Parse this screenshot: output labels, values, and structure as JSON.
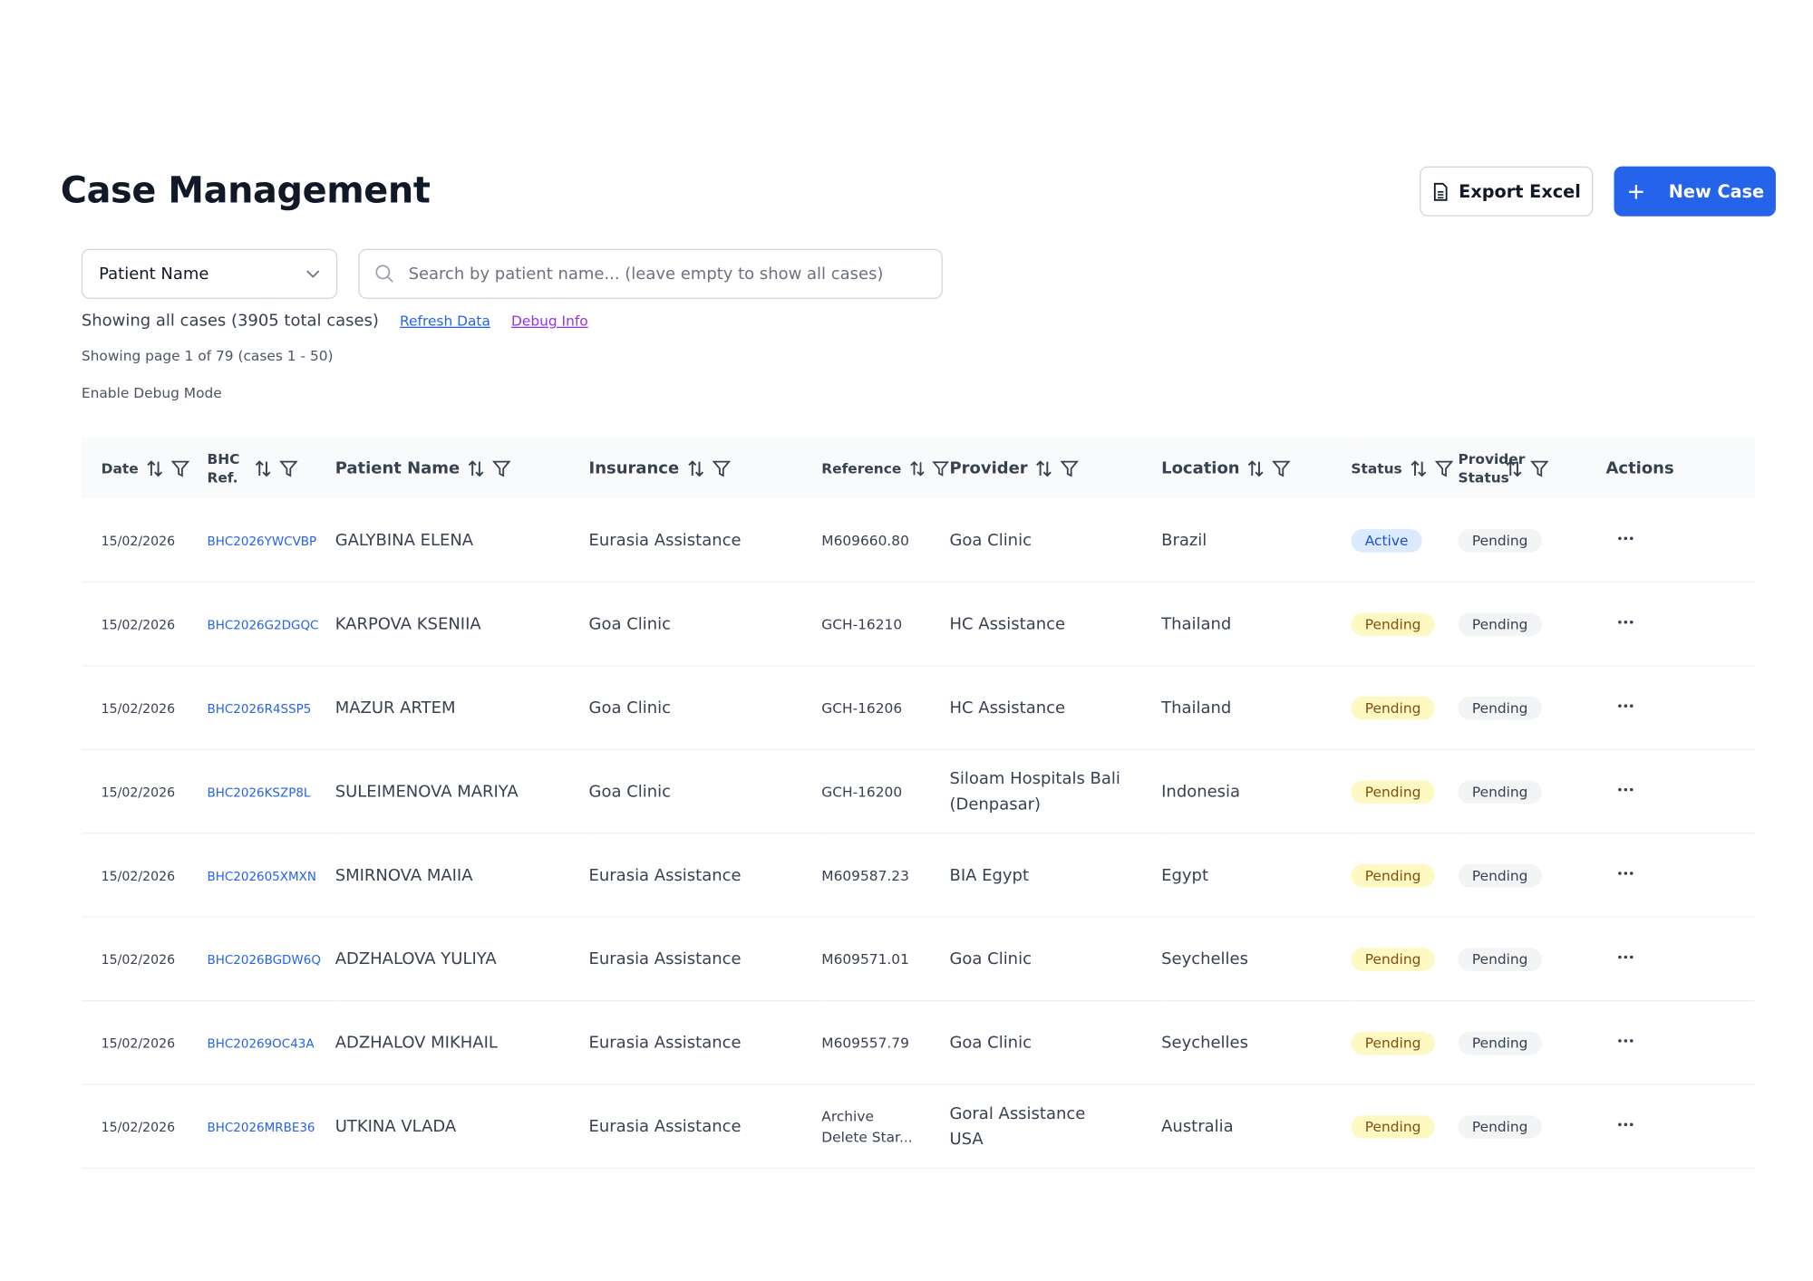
{
  "header": {
    "title": "Case Management",
    "export_button": "Export Excel",
    "new_button": "New Case"
  },
  "controls": {
    "search_field": "Patient Name",
    "search_placeholder": "Search by patient name... (leave empty to show all cases)",
    "summary": "Showing all cases (3905 total cases)",
    "refresh_link": "Refresh Data",
    "debug_link": "Debug Info",
    "pagination": "Showing page 1 of 79 (cases 1 - 50)",
    "debug_mode": "Enable Debug Mode"
  },
  "table": {
    "columns": [
      "Date",
      "BHC Ref.",
      "Patient Name",
      "Insurance",
      "Reference",
      "Provider",
      "Location",
      "Status",
      "Provider Status",
      "Actions"
    ],
    "rows": [
      [
        "15/02/2026",
        "BHC2026YWCVBP",
        "GALYBINA ELENA",
        "Eurasia Assistance",
        "M609660.80",
        "Goa Clinic",
        "Brazil",
        "Active",
        "Pending"
      ],
      [
        "15/02/2026",
        "BHC2026G2DGQC",
        "KARPOVA KSENIIA",
        "Goa Clinic",
        "GCH-16210",
        "HC Assistance",
        "Thailand",
        "Pending",
        "Pending"
      ],
      [
        "15/02/2026",
        "BHC2026R4SSP5",
        "MAZUR ARTEM",
        "Goa Clinic",
        "GCH-16206",
        "HC Assistance",
        "Thailand",
        "Pending",
        "Pending"
      ],
      [
        "15/02/2026",
        "BHC2026KSZP8L",
        "SULEIMENOVA MARIYA",
        "Goa Clinic",
        "GCH-16200",
        "Siloam Hospitals Bali (Denpasar)",
        "Indonesia",
        "Pending",
        "Pending"
      ],
      [
        "15/02/2026",
        "BHC202605XMXN",
        "SMIRNOVA MAIIA",
        "Eurasia Assistance",
        "M609587.23",
        "BIA Egypt",
        "Egypt",
        "Pending",
        "Pending"
      ],
      [
        "15/02/2026",
        "BHC2026BGDW6Q",
        "ADZHALOVA YULIYA",
        "Eurasia Assistance",
        "M609571.01",
        "Goa Clinic",
        "Seychelles",
        "Pending",
        "Pending"
      ],
      [
        "15/02/2026",
        "BHC20269OC43A",
        "ADZHALOV MIKHAIL",
        "Eurasia Assistance",
        "M609557.79",
        "Goa Clinic",
        "Seychelles",
        "Pending",
        "Pending"
      ],
      [
        "15/02/2026",
        "BHC2026MRBE36",
        "UTKINA VLADA",
        "Eurasia Assistance",
        [
          "Archive",
          "Delete Star..."
        ],
        "Goral Assistance USA",
        "Australia",
        "Pending",
        "Pending"
      ]
    ]
  }
}
